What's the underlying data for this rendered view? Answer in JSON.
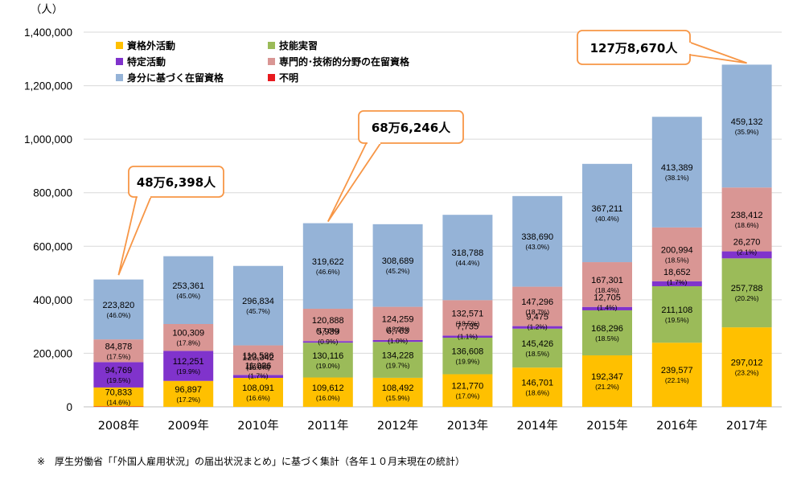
{
  "chart_data": {
    "type": "bar",
    "stacked": true,
    "ylabel": "（人）",
    "ylim": [
      0,
      1400000
    ],
    "yticks": [
      "0",
      "200,000",
      "400,000",
      "600,000",
      "800,000",
      "1,000,000",
      "1,200,000",
      "1,400,000"
    ],
    "ytick_values": [
      0,
      200000,
      400000,
      600000,
      800000,
      1000000,
      1200000,
      1400000
    ],
    "grid": true,
    "legend_position": "top-left",
    "categories": [
      "2008年",
      "2009年",
      "2010年",
      "2011年",
      "2012年",
      "2013年",
      "2014年",
      "2015年",
      "2016年",
      "2017年"
    ],
    "series": [
      {
        "key": "unknown",
        "name": "不明",
        "color": "#e8191e",
        "values": [
          1500,
          null,
          null,
          null,
          null,
          null,
          null,
          null,
          null,
          null
        ],
        "labels": [
          null,
          null,
          null,
          null,
          null,
          null,
          null,
          null,
          null,
          null
        ],
        "pcts": [
          null,
          null,
          null,
          null,
          null,
          null,
          null,
          null,
          null,
          null
        ]
      },
      {
        "key": "extra",
        "name": "資格外活動",
        "color": "#ffc000",
        "values": [
          70833,
          96897,
          108091,
          109612,
          108492,
          121770,
          146701,
          192347,
          239577,
          297012
        ],
        "labels": [
          "70,833",
          "96,897",
          "108,091",
          "109,612",
          "108,492",
          "121,770",
          "146,701",
          "192,347",
          "239,577",
          "297,012"
        ],
        "pcts": [
          "(14.6%)",
          "(17.2%)",
          "(16.6%)",
          "(16.0%)",
          "(15.9%)",
          "(17.0%)",
          "(18.6%)",
          "(21.2%)",
          "(22.1%)",
          "(23.2%)"
        ]
      },
      {
        "key": "trainee",
        "name": "技能実習",
        "color": "#9bbb59",
        "values": [
          null,
          null,
          null,
          130116,
          134228,
          136608,
          145426,
          168296,
          211108,
          257788
        ],
        "labels": [
          null,
          null,
          null,
          "130,116",
          "134,228",
          "136,608",
          "145,426",
          "168,296",
          "211,108",
          "257,788"
        ],
        "pcts": [
          null,
          null,
          null,
          "(19.0%)",
          "(19.7%)",
          "(19.9%)",
          "(18.5%)",
          "(18.5%)",
          "(19.5%)",
          "(20.2%)"
        ]
      },
      {
        "key": "designated",
        "name": "特定活動",
        "color": "#8033cc",
        "values": [
          94769,
          112251,
          11026,
          5939,
          6763,
          7735,
          9475,
          12705,
          18652,
          26270
        ],
        "labels": [
          "94,769",
          "112,251",
          "11,026",
          "5,939",
          "6,763",
          "7,735",
          "9,475",
          "12,705",
          "18,652",
          "26,270"
        ],
        "pcts": [
          "(19.5%)",
          "(19.9%)",
          "(1.7%)",
          "(0.9%)",
          "(1.0%)",
          "(1.1%)",
          "(1.2%)",
          "(1.4%)",
          "(1.7%)",
          "(2.1%)"
        ]
      },
      {
        "key": "professional",
        "name": "専門的･技術的分野の在留資格",
        "color": "#d99694",
        "values": [
          84878,
          100309,
          110586,
          120888,
          124259,
          132571,
          147296,
          167301,
          200994,
          238412
        ],
        "labels": [
          "84,878",
          "100,309",
          "110,586",
          "120,888",
          "124,259",
          "132,571",
          "147,296",
          "167,301",
          "200,994",
          "238,412"
        ],
        "pcts": [
          "(17.5%)",
          "(17.8%)",
          "(17.0%)",
          "(17.6%)",
          "(18.2%)",
          "(18.5%)",
          "(18.7%)",
          "(18.4%)",
          "(18.5%)",
          "(18.6%)"
        ]
      },
      {
        "key": "status",
        "name": "身分に基づく在留資格",
        "color": "#95b3d7",
        "values": [
          223820,
          253361,
          296834,
          319622,
          308689,
          318788,
          338690,
          367211,
          413389,
          459132
        ],
        "labels": [
          "223,820",
          "253,361",
          "296,834",
          "319,622",
          "308,689",
          "318,788",
          "338,690",
          "367,211",
          "413,389",
          "459,132"
        ],
        "pcts": [
          "(46.0%)",
          "(45.0%)",
          "(45.7%)",
          "(46.6%)",
          "(45.2%)",
          "(44.4%)",
          "(43.0%)",
          "(40.4%)",
          "(38.1%)",
          "(35.9%)"
        ]
      }
    ],
    "extra_value_labels": [
      {
        "year_index": 2,
        "text": "123,342",
        "pct": "(19.0%)",
        "series": "designated"
      }
    ],
    "legend_order": [
      "extra",
      "trainee",
      "designated",
      "professional",
      "status",
      "unknown"
    ],
    "annotations": [
      {
        "text": "48万6,398人",
        "year_index": 0,
        "total": 486398
      },
      {
        "text": "68万6,246人",
        "year_index": 3,
        "total": 686246
      },
      {
        "text": "127万8,670人",
        "year_index": 9,
        "total": 1278670
      }
    ]
  },
  "footnote": "※　厚生労働省「「外国人雇用状況」の届出状況まとめ」に基づく集計（各年１０月末現在の統計）"
}
